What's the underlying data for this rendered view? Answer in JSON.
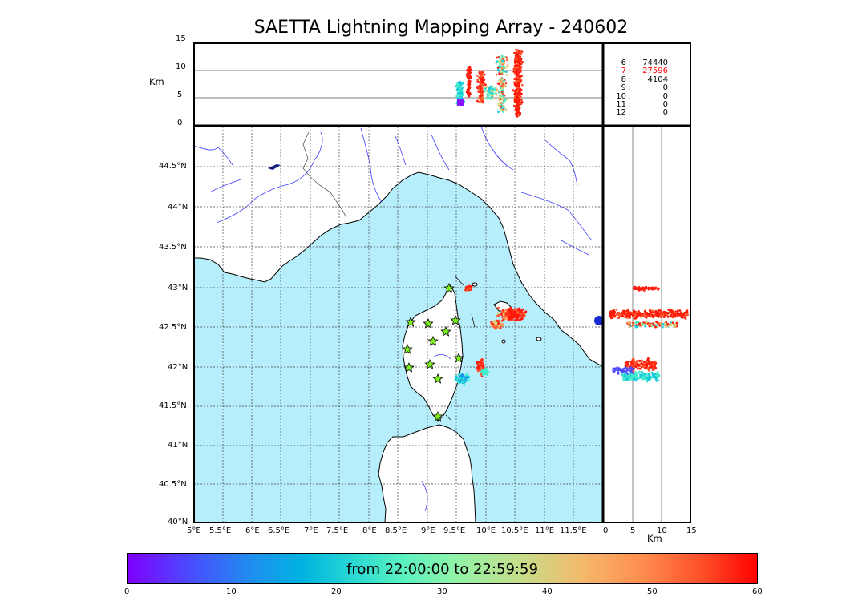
{
  "title": "SAETTA Lightning Mapping Array - 240602",
  "colors": {
    "sea": "#b6eefb",
    "land": "#ffffff",
    "river": "#3c3cff",
    "frame": "#000000",
    "star": "#7df21d"
  },
  "top_panel": {
    "unit": "Km",
    "y_ticks": [
      "15",
      "10",
      "5",
      "0"
    ]
  },
  "right_panel": {
    "unit": "Km",
    "x_ticks": [
      "0",
      "5",
      "10",
      "15"
    ]
  },
  "map": {
    "lat_ticks": [
      "44.5°N",
      "44°N",
      "43.5°N",
      "43°N",
      "42.5°N",
      "42°N",
      "41.5°N",
      "41°N",
      "40.5°N",
      "40°N"
    ],
    "lon_ticks": [
      "5°E",
      "5.5°E",
      "6°E",
      "6.5°E",
      "7°E",
      "7.5°E",
      "8°E",
      "8.5°E",
      "9°E",
      "9.5°E",
      "10°E",
      "10.5°E",
      "11°E",
      "11.5°E"
    ],
    "stations_icon": "star-icon"
  },
  "station_counts": [
    {
      "station": "6",
      "count": "74440",
      "color": "#000000"
    },
    {
      "station": "7",
      "count": "27596",
      "color": "#ff0000"
    },
    {
      "station": "8",
      "count": "4104",
      "color": "#000000"
    },
    {
      "station": "9",
      "count": "0",
      "color": "#000000"
    },
    {
      "station": "10",
      "count": "0",
      "color": "#000000"
    },
    {
      "station": "11",
      "count": "0",
      "color": "#000000"
    },
    {
      "station": "12",
      "count": "0",
      "color": "#000000"
    }
  ],
  "colorbar": {
    "label": "from 22:00:00 to 22:59:59",
    "ticks": [
      "0",
      "10",
      "20",
      "30",
      "40",
      "50",
      "60"
    ],
    "range": [
      0,
      60
    ]
  }
}
